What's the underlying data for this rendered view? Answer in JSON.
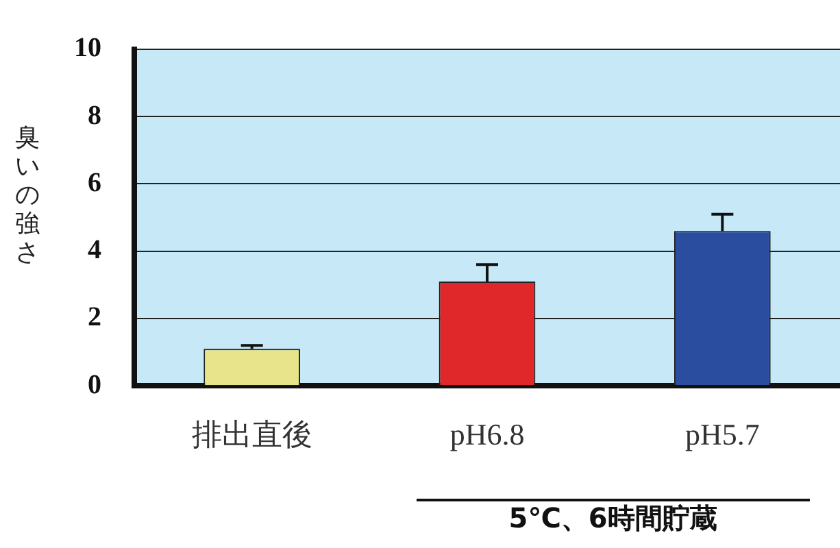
{
  "chart_data": {
    "type": "bar",
    "ylabel": "臭いの強さ",
    "categories": [
      "排出直後",
      "pH6.8",
      "pH5.7"
    ],
    "values": [
      1.1,
      3.1,
      4.6
    ],
    "errors": [
      0.1,
      0.5,
      0.5
    ],
    "colors": [
      "#e8e48c",
      "#e0282a",
      "#2a4da0"
    ],
    "ylim": [
      0,
      10
    ],
    "yticks": [
      0,
      2,
      4,
      6,
      8,
      10
    ],
    "grid": "y",
    "annotations": [
      "5℃、6時間貯蔵"
    ]
  }
}
